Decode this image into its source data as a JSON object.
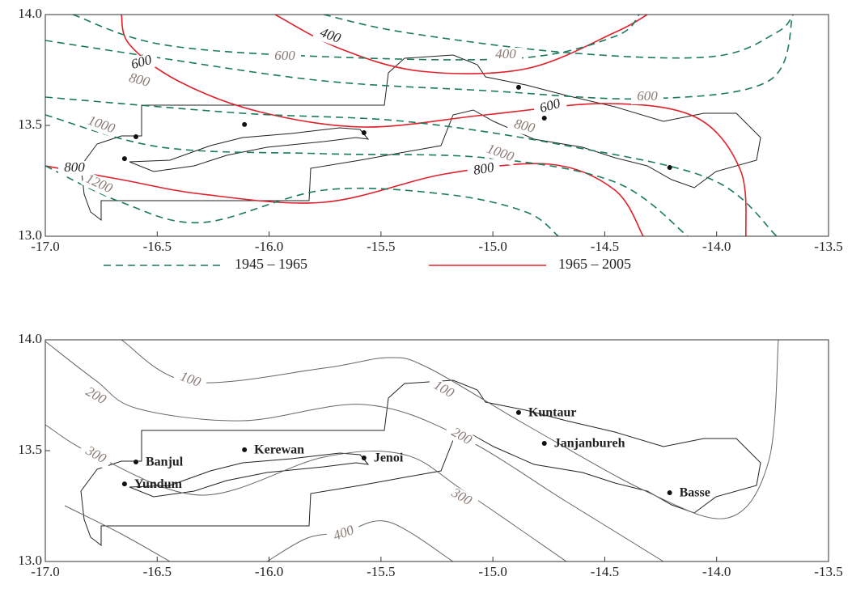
{
  "legend": [
    {
      "name": "1945 – 1965",
      "color": "#1c7a5c",
      "dashed": true
    },
    {
      "name": "1965 – 2005",
      "color": "#e0202a",
      "dashed": false
    }
  ],
  "panels": [
    {
      "xlim": [
        -17.0,
        -13.5
      ],
      "ylim": [
        13.0,
        14.0
      ],
      "xticks": [
        {
          "value": -17.0,
          "label": "-17.0"
        },
        {
          "value": -16.5,
          "label": "-16.5"
        },
        {
          "value": -16.0,
          "label": "-16.0"
        },
        {
          "value": -15.5,
          "label": "-15.5"
        },
        {
          "value": -15.0,
          "label": "-15.0"
        },
        {
          "value": -14.5,
          "label": "-14.5"
        },
        {
          "value": -14.0,
          "label": "-14.0"
        },
        {
          "value": -13.5,
          "label": "-13.5"
        }
      ],
      "yticks": [
        {
          "value": 13.0,
          "label": "13.0"
        },
        {
          "value": 13.5,
          "label": "13.5"
        },
        {
          "value": 14.0,
          "label": "14.0"
        }
      ],
      "contour_labels": [
        {
          "value": 400,
          "series": 1
        },
        {
          "value": 600,
          "series": 1
        },
        {
          "value": 600,
          "series": 1
        },
        {
          "value": 800,
          "series": 1
        },
        {
          "value": 800,
          "series": 1
        },
        {
          "value": 400,
          "series": 0
        },
        {
          "value": 600,
          "series": 0
        },
        {
          "value": 600,
          "series": 0
        },
        {
          "value": 800,
          "series": 0
        },
        {
          "value": 800,
          "series": 0
        },
        {
          "value": 1000,
          "series": 0
        },
        {
          "value": 1000,
          "series": 0
        },
        {
          "value": 1200,
          "series": 0
        }
      ],
      "points": [
        {
          "lon": -16.595,
          "lat": 13.449
        },
        {
          "lon": -16.646,
          "lat": 13.35
        },
        {
          "lon": -16.11,
          "lat": 13.504
        },
        {
          "lon": -15.576,
          "lat": 13.467
        },
        {
          "lon": -14.885,
          "lat": 13.672
        },
        {
          "lon": -14.77,
          "lat": 13.533
        },
        {
          "lon": -14.21,
          "lat": 13.31
        }
      ]
    },
    {
      "xlim": [
        -17.0,
        -13.5
      ],
      "ylim": [
        13.0,
        14.0
      ],
      "xticks": [
        {
          "value": -17.0,
          "label": "-17.0"
        },
        {
          "value": -16.5,
          "label": "-16.5"
        },
        {
          "value": -16.0,
          "label": "-16.0"
        },
        {
          "value": -15.5,
          "label": "-15.5"
        },
        {
          "value": -15.0,
          "label": "-15.0"
        },
        {
          "value": -14.5,
          "label": "-14.5"
        },
        {
          "value": -14.0,
          "label": "-14.0"
        },
        {
          "value": -13.5,
          "label": "-13.5"
        }
      ],
      "yticks": [
        {
          "value": 13.0,
          "label": "13.0"
        },
        {
          "value": 13.5,
          "label": "13.5"
        },
        {
          "value": 14.0,
          "label": "14.0"
        }
      ],
      "contour_labels": [
        {
          "value": 100
        },
        {
          "value": 100
        },
        {
          "value": 200
        },
        {
          "value": 200
        },
        {
          "value": 300
        },
        {
          "value": 300
        },
        {
          "value": 400
        }
      ],
      "points": [
        {
          "name": "Banjul",
          "lon": -16.595,
          "lat": 13.449
        },
        {
          "name": "Yundum",
          "lon": -16.646,
          "lat": 13.35
        },
        {
          "name": "Kerewan",
          "lon": -16.11,
          "lat": 13.504
        },
        {
          "name": "Jenoi",
          "lon": -15.576,
          "lat": 13.467
        },
        {
          "name": "Kuntaur",
          "lon": -14.885,
          "lat": 13.672
        },
        {
          "name": "Janjanbureh",
          "lon": -14.77,
          "lat": 13.533
        },
        {
          "name": "Basse",
          "lon": -14.21,
          "lat": 13.31
        }
      ]
    }
  ]
}
